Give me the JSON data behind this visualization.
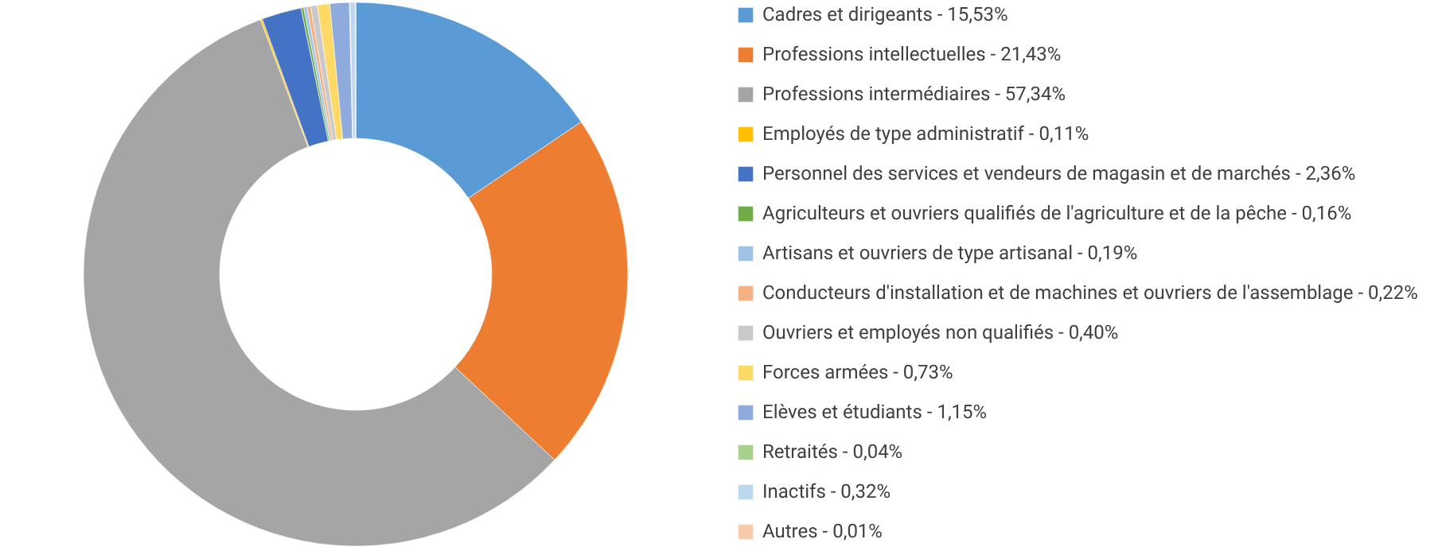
{
  "chart_data": {
    "type": "donut",
    "legend": "right",
    "categories": [
      "Cadres et dirigeants - 15,53%",
      "Professions intellectuelles - 21,43%",
      "Professions intermédiaires - 57,34%",
      "Employés de type administratif - 0,11%",
      "Personnel des services et vendeurs de magasin et de marchés - 2,36%",
      "Agriculteurs et ouvriers qualifiés de l'agriculture et de la pêche - 0,16%",
      "Artisans et ouvriers de type artisanal - 0,19%",
      "Conducteurs d'installation et de machines et ouvriers de l'assemblage - 0,22%",
      "Ouvriers et employés non qualifiés - 0,40%",
      "Forces armées - 0,73%",
      "Elèves et étudiants - 1,15%",
      "Retraités - 0,04%",
      "Inactifs - 0,32%",
      "Autres - 0,01%"
    ],
    "values": [
      15.53,
      21.43,
      57.34,
      0.11,
      2.36,
      0.16,
      0.19,
      0.22,
      0.4,
      0.73,
      1.15,
      0.04,
      0.32,
      0.01
    ],
    "colors": [
      "#5b9bd5",
      "#ed7d31",
      "#a5a5a5",
      "#ffc000",
      "#4472c4",
      "#70ad47",
      "#9dc3e6",
      "#f4b183",
      "#c9c9c9",
      "#ffd966",
      "#8faadc",
      "#a9d18e",
      "#bdd7ee",
      "#f8cbad"
    ]
  }
}
